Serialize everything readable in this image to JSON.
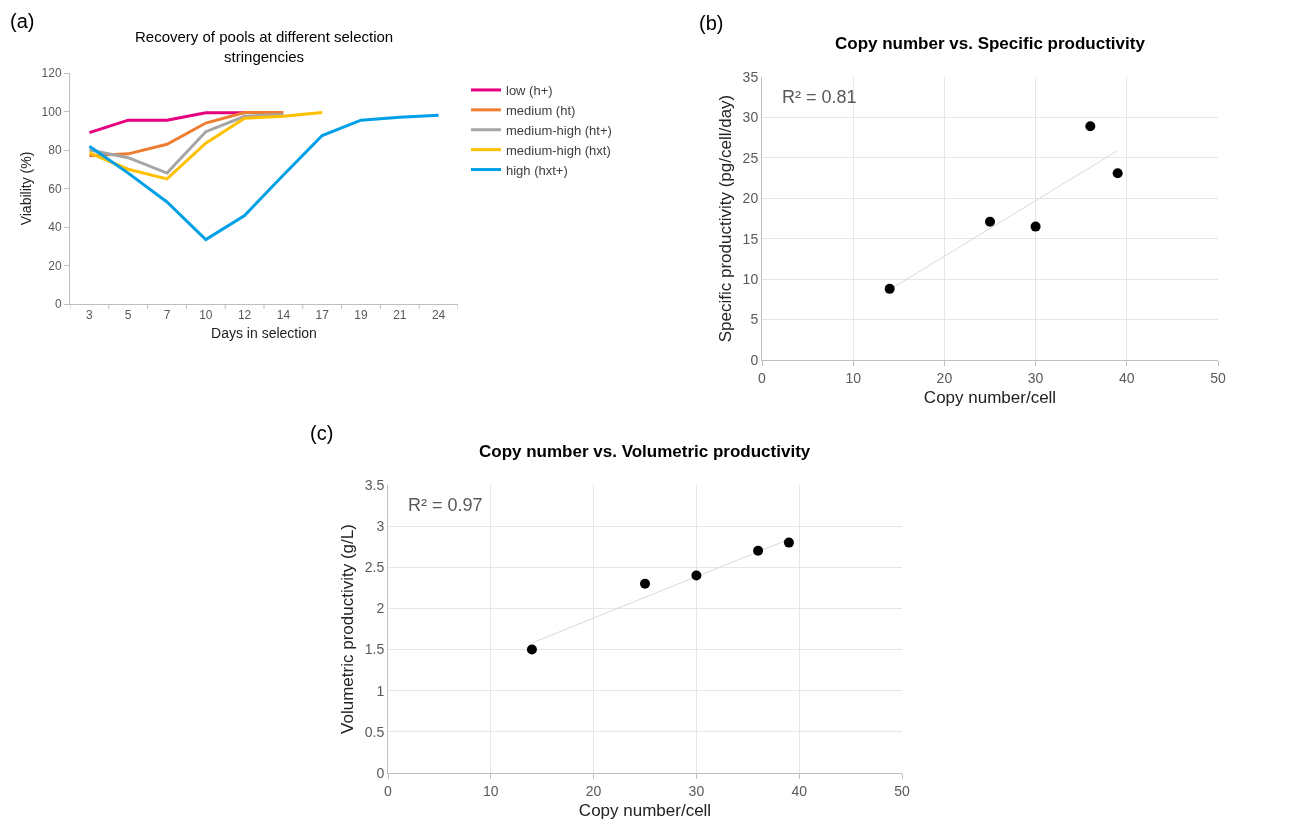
{
  "chart_data": [
    {
      "type": "line",
      "title": "Recovery of pools at different selection stringencies",
      "xlabel": "Days in selection",
      "ylabel": "Viability (%)",
      "annotations": [
        "(a)"
      ],
      "categories": [
        "3",
        "5",
        "7",
        "10",
        "12",
        "14",
        "17",
        "19",
        "21",
        "24"
      ],
      "ylim": [
        0,
        120
      ],
      "yticks": [
        0,
        20,
        40,
        60,
        80,
        100,
        120
      ],
      "grid": false,
      "legend": "right",
      "line_style": "solid",
      "series": [
        {
          "name": "low (h+)",
          "color": "#e6007e",
          "values": [
            89,
            95.5,
            95.5,
            99.3,
            99.3,
            null,
            null,
            null,
            null,
            null
          ]
        },
        {
          "name": "medium (ht)",
          "color": "#ed7d31",
          "values": [
            77,
            78,
            83,
            94,
            99.5,
            99.5,
            null,
            null,
            null,
            null
          ]
        },
        {
          "name": "medium-high (ht+)",
          "color": "#a5a5a5",
          "values": [
            80,
            76,
            68,
            89.5,
            97.5,
            98.5,
            null,
            null,
            null,
            null
          ]
        },
        {
          "name": "medium-high (hxt)",
          "color": "#ffc000",
          "values": [
            78.5,
            70,
            65,
            83.5,
            96.5,
            97.5,
            99.5,
            null,
            null,
            null
          ]
        },
        {
          "name": "high (hxt+)",
          "color": "#00a0e6",
          "values": [
            82,
            68,
            53,
            33.5,
            46,
            67,
            87.5,
            95.5,
            97,
            98
          ]
        }
      ]
    },
    {
      "type": "scatter",
      "title": "Copy number vs. Specific productivity",
      "xlabel": "Copy number/cell",
      "ylabel": "Specific productivity (pg/cell/day)",
      "annotations": [
        "(b)",
        "R² = 0.81"
      ],
      "xlim": [
        0,
        50
      ],
      "xticks": [
        0,
        10,
        20,
        30,
        40,
        50
      ],
      "ylim": [
        0,
        35
      ],
      "yticks": [
        0,
        5,
        10,
        15,
        20,
        25,
        30,
        35
      ],
      "grid": true,
      "legend": false,
      "series": [
        {
          "color": "#000000",
          "marker": "circle",
          "x": [
            14,
            25,
            30,
            36,
            39
          ],
          "values": [
            8.8,
            17.1,
            16.5,
            28.9,
            23.1
          ]
        },
        {
          "type": "line",
          "marker": "none",
          "color": "#d9d9d9",
          "x": [
            14,
            39
          ],
          "values": [
            8.7,
            25.9
          ]
        }
      ]
    },
    {
      "type": "scatter",
      "title": "Copy number vs. Volumetric productivity",
      "xlabel": "Copy number/cell",
      "ylabel": "Volumetric productivity (g/L)",
      "annotations": [
        "(c)",
        "R² = 0.97"
      ],
      "xlim": [
        0,
        50
      ],
      "xticks": [
        0,
        10,
        20,
        30,
        40,
        50
      ],
      "ylim": [
        0,
        3.5
      ],
      "yticks": [
        0,
        0.5,
        1,
        1.5,
        2,
        2.5,
        3,
        3.5
      ],
      "grid": true,
      "legend": false,
      "series": [
        {
          "color": "#000000",
          "marker": "circle",
          "x": [
            14,
            25,
            30,
            36,
            39
          ],
          "values": [
            1.5,
            2.3,
            2.4,
            2.7,
            2.8
          ]
        },
        {
          "type": "line",
          "marker": "none",
          "color": "#d9d9d9",
          "x": [
            14,
            39
          ],
          "values": [
            1.58,
            2.84
          ]
        }
      ]
    }
  ]
}
